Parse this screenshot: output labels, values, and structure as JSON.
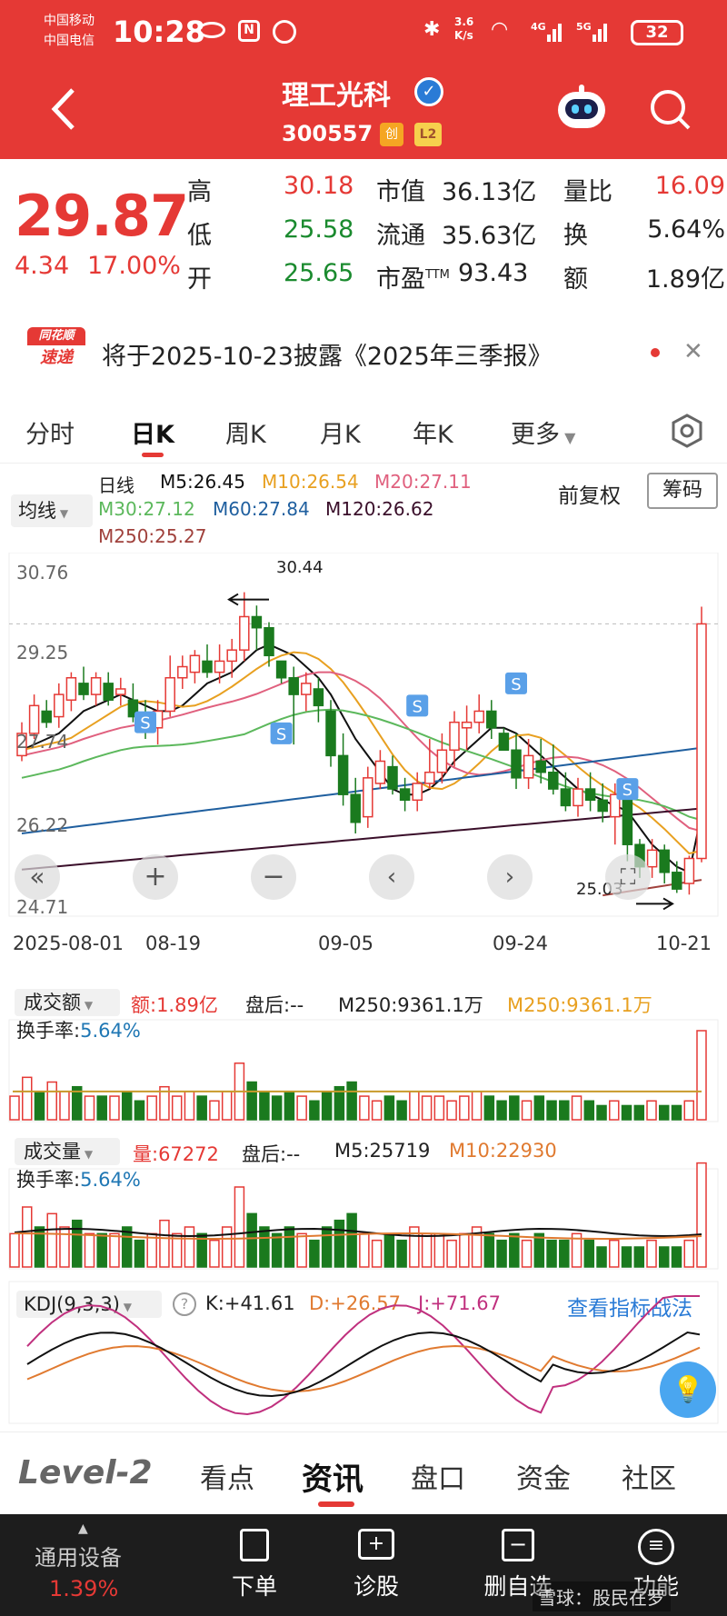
{
  "status": {
    "carrier1": "中国移动",
    "carrier2": "中国电信",
    "time": "10:28",
    "speed_value": "3.6",
    "speed_unit": "K/s",
    "battery": "32"
  },
  "header": {
    "title": "理工光科",
    "code": "300557",
    "badge_chuang": "创",
    "badge_l2": "L2"
  },
  "quote": {
    "price": "29.87",
    "change": "4.34",
    "change_pct": "17.00%",
    "labels": {
      "high": "高",
      "low": "低",
      "open": "开",
      "mcap": "市值",
      "float": "流通",
      "pe": "市盈",
      "pe_sup": "TTM",
      "vr": "量比",
      "turnover": "换",
      "amount": "额"
    },
    "values": {
      "high": "30.18",
      "low": "25.58",
      "open": "25.65",
      "mcap": "36.13亿",
      "float": "35.63亿",
      "pe": "93.43",
      "vr": "16.09",
      "turnover": "5.64%",
      "amount": "1.89亿"
    }
  },
  "notice": {
    "logo_top": "同花顺",
    "logo_bottom": "速递",
    "text": "将于2025-10-23披露《2025年三季报》"
  },
  "ktabs": {
    "items": [
      "分时",
      "日K",
      "周K",
      "月K",
      "年K",
      "更多"
    ],
    "active": 1
  },
  "legend": {
    "ma_button": "均线",
    "period": "日线",
    "m5": "M5:26.45",
    "m10": "M10:26.54",
    "m20": "M20:27.11",
    "m30": "M30:27.12",
    "m60": "M60:27.84",
    "m120": "M120:26.62",
    "m250": "M250:25.27",
    "fuquan": "前复权",
    "chouma": "筹码",
    "c_m5": "#111111",
    "c_m10": "#e8a020",
    "c_m20": "#e0607e",
    "c_m30": "#5cb85c",
    "c_m60": "#1f5f9f",
    "c_m120": "#3a0f2a",
    "c_m250": "#a0413c"
  },
  "main": {
    "yticks": [
      "30.76",
      "29.25",
      "27.74",
      "26.22",
      "24.71"
    ],
    "xticks": [
      "2025-08-01",
      "08-19",
      "09-05",
      "09-24",
      "10-21"
    ],
    "high_label": "30.44",
    "low_label": "25.03"
  },
  "amt": {
    "label": "成交额",
    "val": "额:1.89亿",
    "after": "盘后:--",
    "m250a": "M250:9361.1万",
    "m250b": "M250:9361.1万",
    "turn_label": "换手率:",
    "turn": "5.64%"
  },
  "vol": {
    "label": "成交量",
    "val": "量:67272",
    "after": "盘后:--",
    "m5": "M5:25719",
    "m10": "M10:22930",
    "turn_label": "换手率:",
    "turn": "5.64%"
  },
  "kdj": {
    "label": "KDJ(9,3,3)",
    "k": "K:+41.61",
    "d": "D:+26.57",
    "j": "J:+71.67",
    "link": "查看指标战法"
  },
  "bottabs": {
    "items": [
      "Level-2",
      "看点",
      "资讯",
      "盘口",
      "资金",
      "社区"
    ],
    "active": 2
  },
  "botnav": {
    "device": "通用设备",
    "device_pct": "1.39%",
    "items": [
      "下单",
      "诊股",
      "删自选",
      "功能"
    ],
    "watermark": "雪球：股民在罗"
  },
  "chart_data": {
    "type": "candlestick",
    "title": "理工光科 日K",
    "x": [
      "2025-08-01",
      "08-19",
      "09-05",
      "09-24",
      "10-21"
    ],
    "ylim": [
      24.71,
      30.76
    ],
    "high": 30.44,
    "low": 25.03,
    "last_close": 29.87,
    "candles": [
      [
        27.5,
        27.9,
        27.4,
        28.1
      ],
      [
        27.9,
        28.4,
        27.8,
        28.6
      ],
      [
        28.3,
        28.1,
        28.0,
        28.5
      ],
      [
        28.2,
        28.6,
        28.0,
        28.8
      ],
      [
        28.5,
        28.9,
        28.3,
        29.0
      ],
      [
        28.8,
        28.6,
        28.5,
        29.1
      ],
      [
        28.6,
        28.9,
        28.4,
        29.0
      ],
      [
        28.8,
        28.5,
        28.4,
        29.0
      ],
      [
        28.6,
        28.7,
        28.4,
        28.9
      ],
      [
        28.5,
        28.2,
        28.1,
        28.8
      ],
      [
        28.2,
        28.0,
        27.8,
        28.5
      ],
      [
        28.0,
        28.3,
        27.7,
        28.5
      ],
      [
        28.3,
        28.9,
        28.2,
        29.3
      ],
      [
        28.9,
        29.1,
        28.7,
        29.3
      ],
      [
        29.0,
        29.3,
        28.8,
        29.4
      ],
      [
        29.2,
        29.0,
        28.9,
        29.5
      ],
      [
        29.0,
        29.2,
        28.8,
        29.5
      ],
      [
        29.2,
        29.4,
        28.9,
        29.6
      ],
      [
        29.4,
        30.0,
        29.2,
        30.44
      ],
      [
        30.0,
        29.8,
        29.4,
        30.2
      ],
      [
        29.8,
        29.3,
        29.1,
        29.9
      ],
      [
        29.2,
        28.9,
        28.8,
        29.2
      ],
      [
        28.9,
        28.6,
        27.7,
        29.1
      ],
      [
        28.6,
        28.8,
        28.3,
        29.0
      ],
      [
        28.7,
        28.4,
        28.1,
        28.9
      ],
      [
        28.3,
        27.5,
        27.3,
        28.5
      ],
      [
        27.5,
        26.8,
        26.6,
        27.9
      ],
      [
        26.8,
        26.3,
        26.1,
        27.1
      ],
      [
        26.4,
        27.1,
        26.2,
        27.3
      ],
      [
        27.0,
        27.4,
        26.9,
        27.6
      ],
      [
        27.3,
        26.9,
        26.8,
        27.5
      ],
      [
        26.9,
        26.7,
        26.5,
        27.1
      ],
      [
        26.7,
        27.0,
        26.5,
        27.2
      ],
      [
        27.0,
        27.2,
        26.9,
        27.8
      ],
      [
        27.2,
        27.6,
        27.0,
        27.9
      ],
      [
        27.6,
        28.1,
        27.3,
        28.3
      ],
      [
        28.0,
        28.1,
        27.6,
        28.4
      ],
      [
        28.1,
        28.3,
        27.9,
        28.6
      ],
      [
        28.3,
        28.0,
        27.8,
        28.5
      ],
      [
        27.9,
        27.6,
        27.6,
        28.0
      ],
      [
        27.6,
        27.1,
        26.9,
        27.9
      ],
      [
        27.1,
        27.5,
        26.9,
        27.8
      ],
      [
        27.4,
        27.2,
        27.0,
        27.8
      ],
      [
        27.2,
        26.9,
        26.8,
        27.7
      ],
      [
        26.9,
        26.6,
        26.5,
        27.2
      ],
      [
        26.6,
        26.9,
        26.4,
        27.1
      ],
      [
        26.9,
        26.7,
        26.5,
        27.2
      ],
      [
        26.7,
        26.5,
        26.3,
        27.0
      ],
      [
        26.4,
        26.8,
        25.9,
        27.0
      ],
      [
        26.7,
        25.9,
        25.6,
        26.9
      ],
      [
        25.9,
        25.5,
        25.3,
        26.0
      ],
      [
        25.5,
        25.8,
        25.3,
        26.0
      ],
      [
        25.8,
        25.4,
        25.2,
        25.9
      ],
      [
        25.4,
        25.1,
        25.03,
        25.6
      ],
      [
        25.2,
        25.65,
        25.0,
        25.7
      ],
      [
        25.65,
        29.87,
        25.58,
        30.18
      ]
    ],
    "ma": {
      "m5": [
        27.6,
        27.7,
        27.8,
        27.9,
        28.1,
        28.3,
        28.4,
        28.5,
        28.6,
        28.5,
        28.4,
        28.3,
        28.3,
        28.4,
        28.6,
        28.8,
        28.9,
        29.0,
        29.2,
        29.4,
        29.5,
        29.4,
        29.3,
        29.1,
        28.9,
        28.6,
        28.2,
        27.8,
        27.5,
        27.2,
        26.9,
        26.8,
        26.8,
        26.9,
        27.1,
        27.4,
        27.6,
        27.8,
        28.0,
        28.0,
        27.9,
        27.7,
        27.5,
        27.3,
        27.1,
        26.9,
        26.8,
        26.7,
        26.6,
        26.5,
        26.2,
        25.9,
        25.7,
        25.5,
        25.4,
        26.45
      ]
    },
    "amount": [
      5,
      9,
      6,
      8,
      6,
      7,
      5,
      5,
      5,
      6,
      4,
      5,
      7,
      5,
      6,
      5,
      4,
      6,
      12,
      8,
      6,
      5,
      6,
      5,
      4,
      6,
      7,
      8,
      5,
      4,
      5,
      4,
      6,
      5,
      5,
      4,
      5,
      6,
      5,
      4,
      5,
      4,
      5,
      4,
      4,
      5,
      4,
      3,
      4,
      3,
      3,
      4,
      3,
      3,
      4,
      18.9
    ]
  }
}
